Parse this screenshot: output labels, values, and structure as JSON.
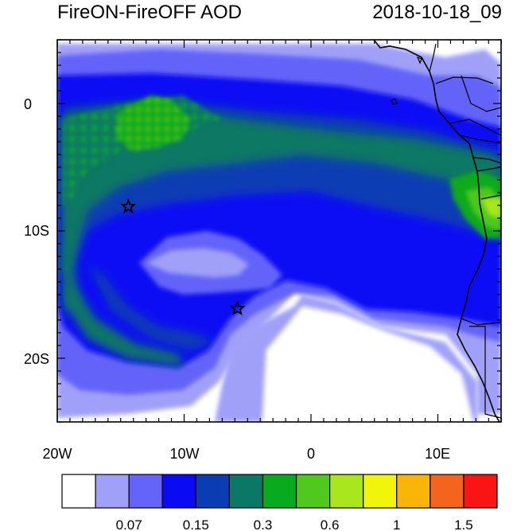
{
  "title_left": "FireON-FireOFF AOD",
  "title_right": "2018-10-18_09",
  "x_ticks": [
    "20W",
    "10W",
    "0",
    "10E"
  ],
  "y_ticks": [
    "0",
    "10S",
    "20S"
  ],
  "markers": [
    {
      "name": "star-marker-1",
      "lon": -14.4,
      "lat": -8.1
    },
    {
      "name": "star-marker-2",
      "lon": -5.8,
      "lat": -16.1
    }
  ],
  "colorbar": {
    "colors": [
      "#ffffff",
      "#a0a0f8",
      "#6464fa",
      "#0a0af5",
      "#0a3cb4",
      "#0a7864",
      "#0aaa1e",
      "#50c81e",
      "#aae61e",
      "#f0f50a",
      "#fab40a",
      "#f5641e",
      "#fa1414"
    ],
    "labels": [
      "0.07",
      "0.15",
      "0.3",
      "0.6",
      "1",
      "1.5"
    ]
  }
}
